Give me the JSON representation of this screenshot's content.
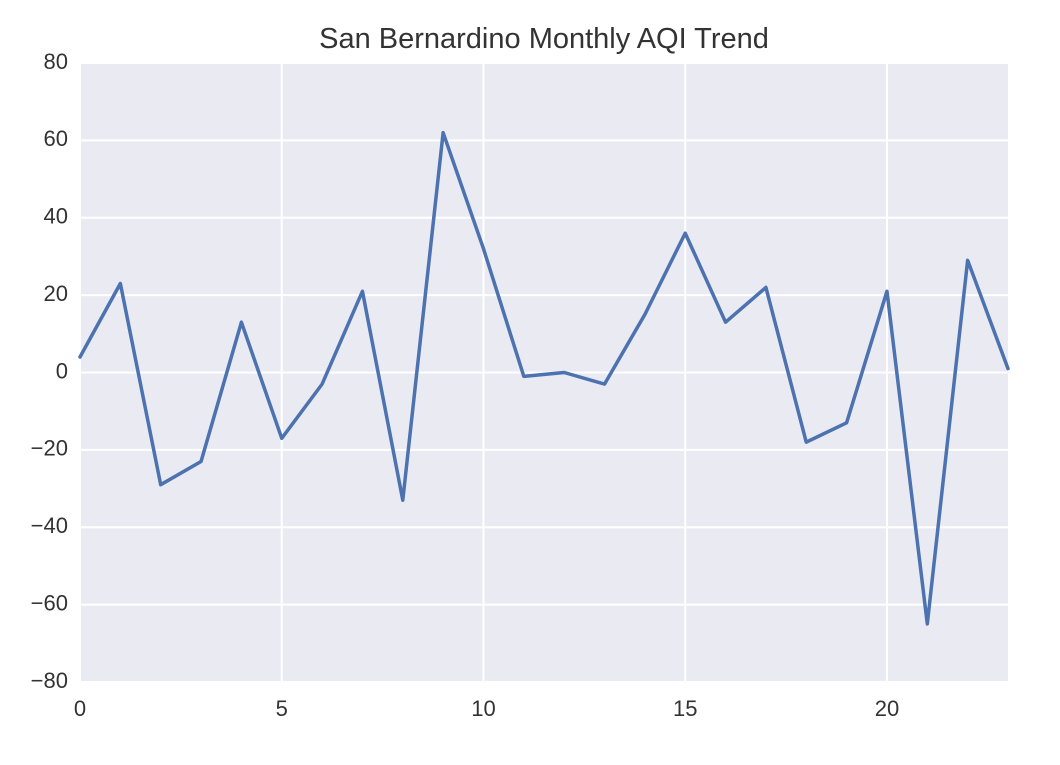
{
  "chart_data": {
    "type": "line",
    "title": "San Bernardino Monthly AQI Trend",
    "xlabel": "",
    "ylabel": "",
    "xlim": [
      0,
      23
    ],
    "ylim": [
      -80,
      80
    ],
    "x_ticks": [
      0,
      5,
      10,
      15,
      20
    ],
    "y_ticks": [
      -80,
      -60,
      -40,
      -20,
      0,
      20,
      40,
      60,
      80
    ],
    "grid": true,
    "legend": "none",
    "series": [
      {
        "x": [
          0,
          1,
          2,
          3,
          4,
          5,
          6,
          7,
          8,
          9,
          10,
          11,
          12,
          13,
          14,
          15,
          16,
          17,
          18,
          19,
          20,
          21,
          22,
          23
        ],
        "y": [
          4,
          23,
          -29,
          -23,
          13,
          -17,
          -3,
          21,
          -33,
          62,
          32,
          -1,
          0,
          -3,
          15,
          36,
          13,
          22,
          -18,
          -13,
          21,
          -65,
          29,
          1
        ],
        "color": "#4c72b0"
      }
    ],
    "colors": {
      "plot_background": "#eaeaf2",
      "grid": "#ffffff",
      "line": "#4c72b0",
      "text": "#333333"
    }
  }
}
